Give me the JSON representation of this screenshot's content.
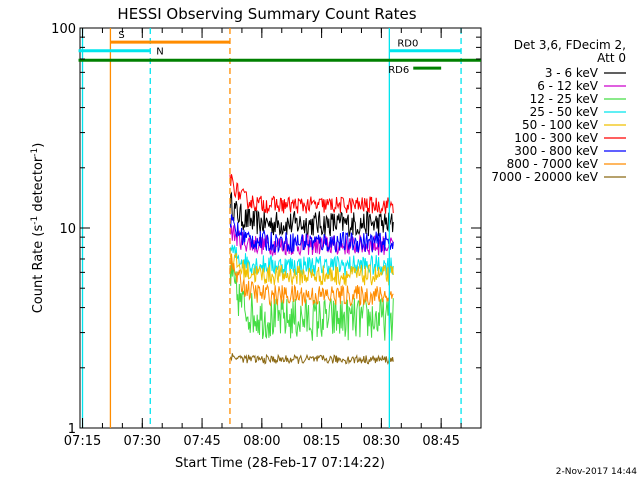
{
  "chart_data": {
    "type": "line",
    "title": "HESSI Observing Summary Count Rates",
    "xlabel": "Start Time (28-Feb-17 07:14:22)",
    "ylabel_main": "Count Rate (s",
    "ylabel_sup1": "-1",
    "ylabel_mid": " detector",
    "ylabel_sup2": "-1",
    "ylabel_end": ")",
    "y_scale": "log",
    "ylim": [
      1,
      100
    ],
    "xlim": [
      "07:14",
      "08:55"
    ],
    "x_ticks": [
      "07:15",
      "07:30",
      "07:45",
      "08:00",
      "08:15",
      "08:30",
      "08:45"
    ],
    "y_ticks": [
      "1",
      "10",
      "100"
    ],
    "legend_title": [
      "Det 3,6, FDecim 2,",
      "Att 0"
    ],
    "legend_position": "right",
    "footer_date": "2-Nov-2017 14:44",
    "series": [
      {
        "name": "3 - 6 keV",
        "color": "#000000",
        "start": "07:52",
        "end": "08:33",
        "level": 10.5,
        "spread": 0.15,
        "first_peak": 13.5
      },
      {
        "name": "6 - 12 keV",
        "color": "#cc00cc",
        "start": "07:52",
        "end": "08:33",
        "level": 8.2,
        "spread": 0.12,
        "first_peak": 10
      },
      {
        "name": "12 - 25 keV",
        "color": "#44dd44",
        "start": "07:52",
        "end": "08:33",
        "level": 3.5,
        "spread": 0.25,
        "first_peak": 6
      },
      {
        "name": "25 - 50 keV",
        "color": "#00e5ee",
        "start": "07:52",
        "end": "08:33",
        "level": 6.5,
        "spread": 0.12,
        "first_peak": 8
      },
      {
        "name": "50 - 100 keV",
        "color": "#f0c000",
        "start": "07:52",
        "end": "08:33",
        "level": 5.8,
        "spread": 0.12,
        "first_peak": 7.5
      },
      {
        "name": "100 - 300 keV",
        "color": "#ff0000",
        "start": "07:52",
        "end": "08:33",
        "level": 13,
        "spread": 0.1,
        "first_peak": 18
      },
      {
        "name": "300 - 800 keV",
        "color": "#0000ff",
        "start": "07:52",
        "end": "08:33",
        "level": 8.5,
        "spread": 0.12,
        "first_peak": 11
      },
      {
        "name": "800 - 7000 keV",
        "color": "#ff8c00",
        "start": "07:52",
        "end": "08:33",
        "level": 4.6,
        "spread": 0.12,
        "first_peak": 7
      },
      {
        "name": "7000 - 20000 keV",
        "color": "#8b6914",
        "start": "07:52",
        "end": "08:33",
        "level": 2.2,
        "spread": 0.05,
        "first_peak": 2.3
      }
    ],
    "annotations": {
      "vlines": [
        {
          "time": "07:15",
          "color": "#00e5ee",
          "style": "solid"
        },
        {
          "time": "07:22",
          "color": "#ff8c00",
          "style": "solid"
        },
        {
          "time": "07:32",
          "color": "#00e5ee",
          "style": "dashed"
        },
        {
          "time": "07:52",
          "color": "#ff8c00",
          "style": "dashed"
        },
        {
          "time": "08:32",
          "color": "#00e5ee",
          "style": "solid"
        },
        {
          "time": "08:50",
          "color": "#00e5ee",
          "style": "dashed"
        }
      ],
      "bars": [
        {
          "label": "S",
          "color": "#ff8c00",
          "start": "07:22",
          "end": "07:52",
          "level": 85
        },
        {
          "label": "N",
          "color": "#00e5ee",
          "start": "07:14",
          "end": "07:32",
          "level": 77
        },
        {
          "label": "",
          "color": "#008000",
          "start": "07:14",
          "end": "08:55",
          "level": 69
        },
        {
          "label": "RD0",
          "color": "#00e5ee",
          "start": "08:32",
          "end": "08:50",
          "level": 77
        },
        {
          "label": "RD6",
          "color": "#008000",
          "start": "08:38",
          "end": "08:45",
          "level": 63
        }
      ]
    }
  }
}
